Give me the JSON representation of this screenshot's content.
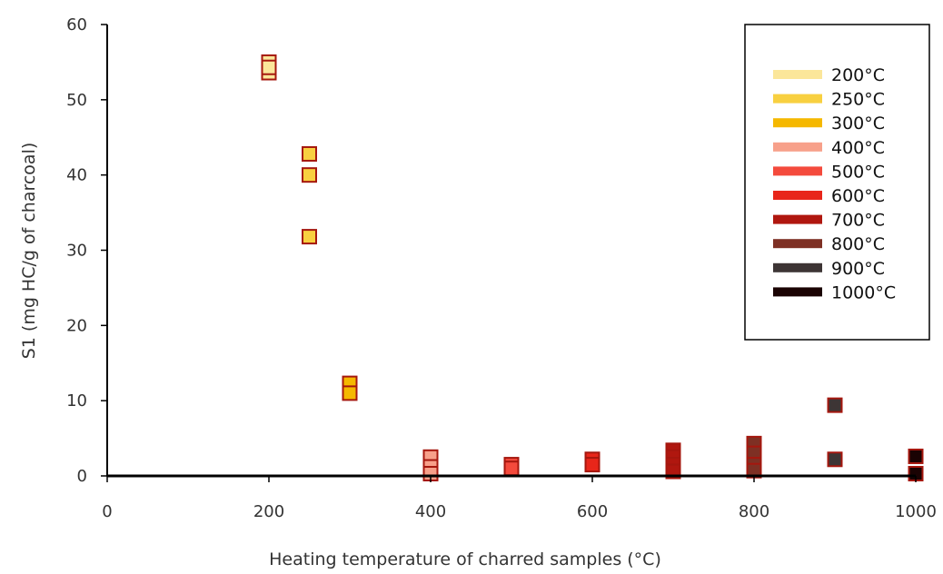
{
  "chart_data": {
    "type": "scatter",
    "title": "",
    "xlabel": "Heating temperature of charred samples (°C)",
    "ylabel": "S1 (mg HC/g of charcoal)",
    "xlim": [
      0,
      1000
    ],
    "ylim": [
      0,
      60
    ],
    "xticks": [
      0,
      200,
      400,
      600,
      800,
      1000
    ],
    "yticks": [
      0,
      10,
      20,
      30,
      40,
      50,
      60
    ],
    "grid": false,
    "legend_position": "top-right",
    "series": [
      {
        "name": "200°C",
        "color": "#FBE69A",
        "points": [
          [
            200,
            55.0
          ],
          [
            200,
            53.6
          ],
          [
            200,
            54.3
          ]
        ]
      },
      {
        "name": "250°C",
        "color": "#F8D040",
        "points": [
          [
            250,
            42.8
          ],
          [
            250,
            40.0
          ],
          [
            250,
            31.8
          ]
        ]
      },
      {
        "name": "300°C",
        "color": "#F5B800",
        "points": [
          [
            300,
            12.3
          ],
          [
            300,
            11.0
          ]
        ]
      },
      {
        "name": "400°C",
        "color": "#F7A08A",
        "points": [
          [
            400,
            2.5
          ],
          [
            400,
            1.2
          ],
          [
            400,
            0.3
          ]
        ]
      },
      {
        "name": "500°C",
        "color": "#F44A3C",
        "points": [
          [
            500,
            1.5
          ],
          [
            500,
            1.0
          ]
        ]
      },
      {
        "name": "600°C",
        "color": "#E8261A",
        "points": [
          [
            600,
            2.2
          ],
          [
            600,
            1.5
          ]
        ]
      },
      {
        "name": "700°C",
        "color": "#B0170F",
        "points": [
          [
            700,
            3.4
          ],
          [
            700,
            2.5
          ],
          [
            700,
            1.5
          ],
          [
            700,
            0.6
          ]
        ]
      },
      {
        "name": "800°C",
        "color": "#7E3024",
        "points": [
          [
            800,
            4.3
          ],
          [
            800,
            3.0
          ],
          [
            800,
            1.5
          ],
          [
            800,
            0.7
          ]
        ]
      },
      {
        "name": "900°C",
        "color": "#3D3535",
        "points": [
          [
            900,
            9.4
          ],
          [
            900,
            2.2
          ]
        ]
      },
      {
        "name": "1000°C",
        "color": "#1A0303",
        "points": [
          [
            1000,
            2.6
          ],
          [
            1000,
            0.3
          ]
        ]
      }
    ]
  }
}
